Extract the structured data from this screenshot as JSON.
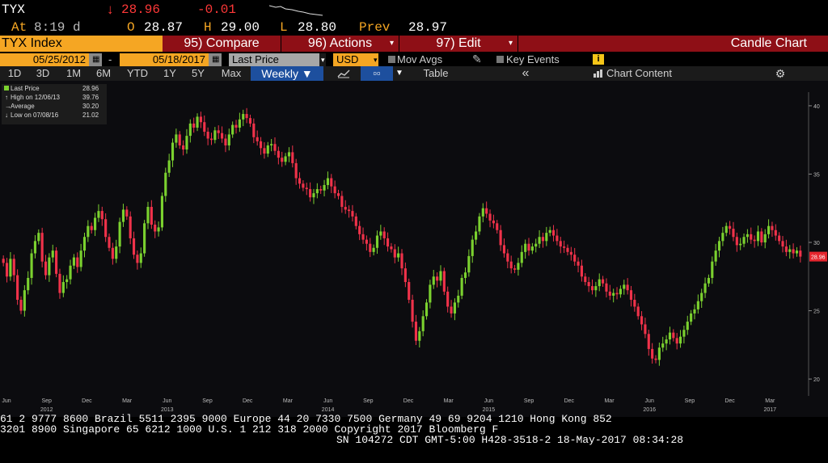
{
  "header": {
    "ticker": "TYX",
    "arrow": "↓",
    "last": "28.96",
    "change": "-0.01",
    "time_label": "At",
    "time": "8:19 d",
    "open_label": "O",
    "open": "28.87",
    "high_label": "H",
    "high": "29.00",
    "low_label": "L",
    "low": "28.80",
    "prev_label": "Prev",
    "prev": "28.97"
  },
  "menubar": {
    "security": "TYX Index",
    "compare": "95) Compare",
    "actions": "96) Actions",
    "edit": "97) Edit",
    "chart_name": "Candle Chart"
  },
  "controls": {
    "start_date": "05/25/2012",
    "end_date": "05/18/2017",
    "dash": "-",
    "field": "Last Price",
    "currency": "USD",
    "mov_avgs": "Mov Avgs",
    "key_events": "Key Events",
    "info": "i"
  },
  "periods": {
    "items": [
      "1D",
      "3D",
      "1M",
      "6M",
      "YTD",
      "1Y",
      "5Y",
      "Max"
    ],
    "frequency": "Weekly",
    "table": "Table",
    "collapse": "«",
    "chart_content": "Chart Content"
  },
  "legend": {
    "rows": [
      {
        "label": "Last Price",
        "value": "28.96"
      },
      {
        "label": "High on 12/06/13",
        "value": "39.76"
      },
      {
        "label": "Average",
        "value": "30.20"
      },
      {
        "label": "Low on 07/08/16",
        "value": "21.02"
      }
    ]
  },
  "colors": {
    "up": "#7bd12f",
    "down": "#f0324a",
    "orange": "#f5a623",
    "menu_red": "#8e0f16"
  },
  "chart_data": {
    "type": "candlestick",
    "ylim": [
      19,
      41
    ],
    "yticks": [
      "20",
      "25",
      "30",
      "35",
      "40"
    ],
    "last_value_label": "28.96",
    "xticks": [
      {
        "label": "Jun",
        "year": ""
      },
      {
        "label": "Sep",
        "year": "2012"
      },
      {
        "label": "Dec",
        "year": ""
      },
      {
        "label": "Mar",
        "year": ""
      },
      {
        "label": "Jun",
        "year": "2013"
      },
      {
        "label": "Sep",
        "year": ""
      },
      {
        "label": "Dec",
        "year": ""
      },
      {
        "label": "Mar",
        "year": ""
      },
      {
        "label": "Jun",
        "year": "2014"
      },
      {
        "label": "Sep",
        "year": ""
      },
      {
        "label": "Dec",
        "year": ""
      },
      {
        "label": "Mar",
        "year": ""
      },
      {
        "label": "Jun",
        "year": "2015"
      },
      {
        "label": "Sep",
        "year": ""
      },
      {
        "label": "Dec",
        "year": ""
      },
      {
        "label": "Mar",
        "year": ""
      },
      {
        "label": "Jun",
        "year": "2016"
      },
      {
        "label": "Sep",
        "year": ""
      },
      {
        "label": "Dec",
        "year": ""
      },
      {
        "label": "Mar",
        "year": "2017"
      }
    ],
    "closes": [
      28.5,
      27.5,
      28.8,
      27.6,
      25.8,
      25.0,
      26.5,
      27.4,
      29.2,
      30.1,
      30.7,
      28.6,
      27.6,
      28.9,
      29.4,
      27.7,
      26.3,
      27.1,
      27.3,
      28.3,
      28.9,
      28.2,
      29.4,
      30.4,
      31.2,
      30.9,
      31.8,
      32.3,
      31.7,
      30.4,
      29.6,
      28.8,
      29.7,
      31.5,
      32.4,
      31.9,
      30.3,
      29.1,
      28.5,
      29.2,
      31.4,
      32.6,
      31.3,
      30.8,
      31.1,
      33.4,
      35.1,
      36.0,
      37.3,
      37.9,
      37.1,
      36.8,
      37.8,
      38.7,
      38.4,
      39.2,
      38.8,
      38.1,
      37.6,
      37.5,
      38.2,
      38.0,
      37.6,
      37.1,
      37.9,
      38.6,
      38.4,
      39.0,
      39.4,
      39.1,
      38.7,
      37.7,
      37.4,
      36.9,
      36.5,
      37.1,
      37.2,
      36.7,
      36.2,
      35.9,
      36.3,
      36.6,
      35.8,
      34.7,
      34.3,
      34.0,
      33.9,
      33.3,
      33.6,
      33.9,
      33.8,
      34.2,
      34.7,
      34.1,
      33.6,
      33.4,
      32.6,
      32.4,
      32.3,
      31.9,
      31.2,
      30.6,
      30.2,
      29.9,
      29.3,
      29.6,
      30.5,
      30.8,
      30.3,
      29.7,
      29.5,
      28.9,
      29.2,
      28.1,
      27.1,
      25.8,
      24.2,
      22.8,
      23.5,
      24.6,
      25.6,
      26.9,
      27.5,
      27.2,
      27.9,
      26.4,
      25.3,
      24.8,
      25.6,
      26.1,
      27.4,
      27.8,
      29.0,
      30.2,
      30.8,
      31.9,
      32.5,
      32.1,
      31.6,
      31.4,
      30.9,
      29.8,
      29.2,
      28.6,
      28.1,
      28.0,
      28.5,
      29.3,
      29.9,
      29.4,
      29.7,
      29.9,
      30.4,
      30.1,
      30.7,
      30.9,
      30.5,
      30.1,
      29.7,
      29.6,
      29.3,
      29.1,
      28.6,
      28.3,
      27.5,
      27.1,
      26.8,
      26.5,
      26.8,
      27.3,
      27.0,
      26.4,
      26.1,
      26.3,
      26.2,
      26.6,
      26.9,
      26.5,
      25.8,
      25.3,
      24.6,
      24.0,
      23.3,
      22.2,
      21.5,
      21.4,
      22.3,
      22.6,
      22.9,
      23.4,
      23.0,
      22.6,
      23.1,
      23.6,
      24.2,
      24.8,
      25.1,
      25.7,
      26.3,
      27.0,
      27.4,
      28.6,
      29.4,
      30.1,
      30.7,
      31.2,
      31.0,
      30.4,
      29.8,
      29.9,
      30.4,
      30.6,
      30.2,
      30.1,
      30.8,
      30.0,
      30.6,
      31.2,
      30.9,
      30.5,
      30.1,
      29.7,
      29.3,
      29.5,
      29.2,
      29.4,
      28.96
    ]
  },
  "ticker_lines": [
    "61 2 9777 8600 Brazil 5511 2395 9000 Europe 44 20 7330 7500 Germany 49 69 9204 1210 Hong Kong 852",
    "3201 8900        Singapore 65 6212 1000      U.S. 1 212 318 2000       Copyright 2017 Bloomberg F",
    "SN 104272 CDT  GMT-5:00 H428-3518-2 18-May-2017 08:34:28"
  ]
}
